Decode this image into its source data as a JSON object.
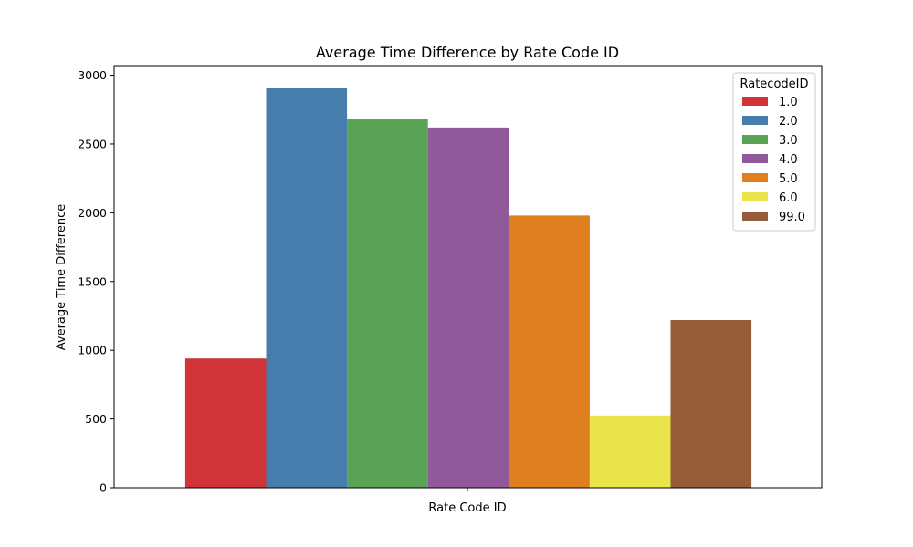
{
  "chart_data": {
    "type": "bar",
    "title": "Average Time Difference by Rate Code ID",
    "xlabel": "Rate Code ID",
    "ylabel": "Average Time Difference",
    "ylim": [
      0,
      3070
    ],
    "yticks": [
      0,
      500,
      1000,
      1500,
      2000,
      2500,
      3000
    ],
    "grid": false,
    "legend": {
      "title": "RatecodeID",
      "placement": "top-right"
    },
    "series": [
      {
        "name": "1.0",
        "values": [
          940
        ],
        "color": "#d03338"
      },
      {
        "name": "2.0",
        "values": [
          2910
        ],
        "color": "#477dac"
      },
      {
        "name": "3.0",
        "values": [
          2685
        ],
        "color": "#5aa356"
      },
      {
        "name": "4.0",
        "values": [
          2620
        ],
        "color": "#905a9a"
      },
      {
        "name": "5.0",
        "values": [
          1980
        ],
        "color": "#e07f1f"
      },
      {
        "name": "6.0",
        "values": [
          525
        ],
        "color": "#e8e44a"
      },
      {
        "name": "99.0",
        "values": [
          1220
        ],
        "color": "#965b39"
      }
    ]
  }
}
